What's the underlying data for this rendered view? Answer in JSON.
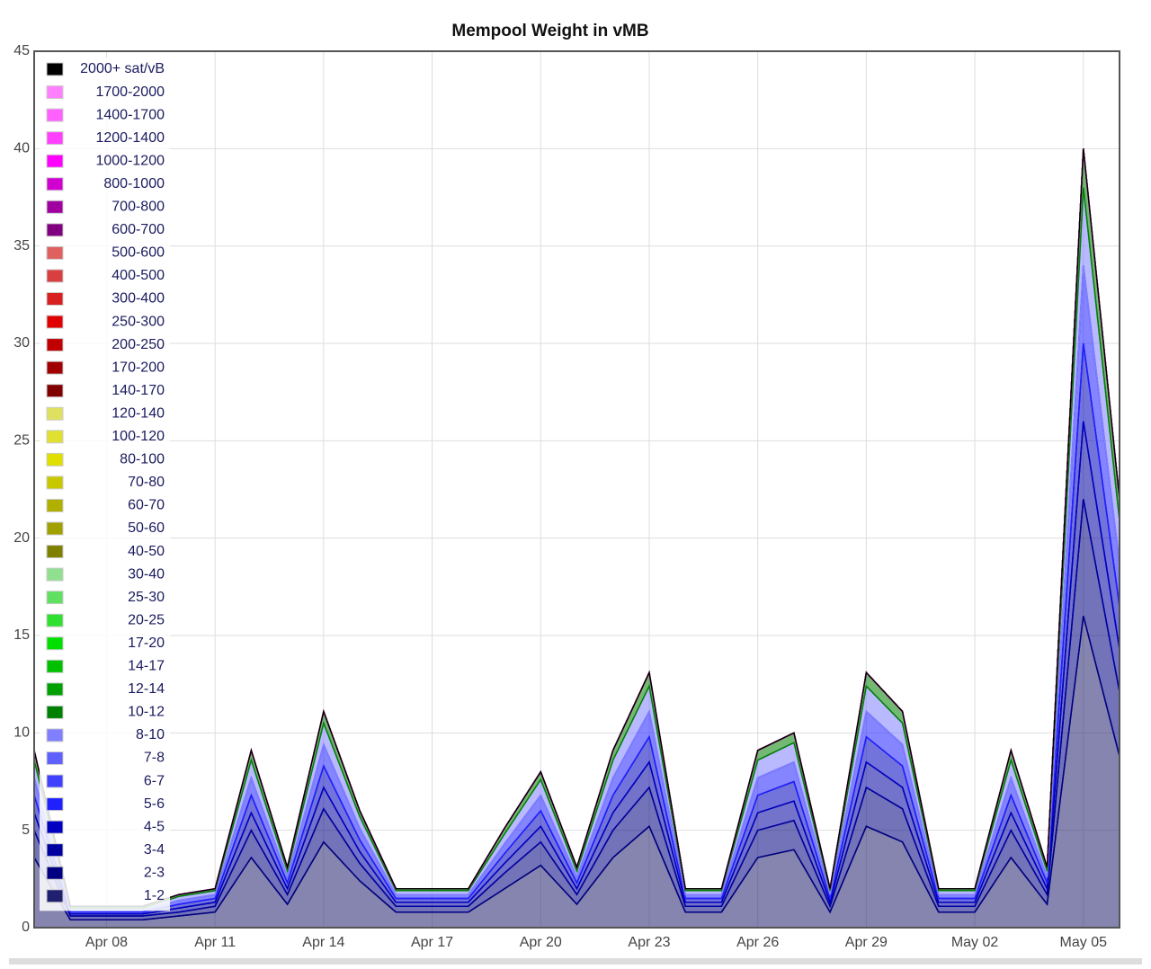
{
  "chart_data": {
    "type": "stacked-area",
    "title": "Mempool Weight in vMB",
    "x": [
      null,
      null,
      "Apr 08",
      null,
      null,
      "Apr 11",
      null,
      null,
      "Apr 14",
      null,
      null,
      "Apr 17",
      null,
      null,
      "Apr 20",
      null,
      null,
      "Apr 23",
      null,
      null,
      "Apr 26",
      null,
      null,
      "Apr 29",
      null,
      null,
      "May 02",
      null,
      null,
      "May 05",
      null
    ],
    "ylim": [
      0,
      45
    ],
    "yticks": [
      0,
      5,
      10,
      15,
      20,
      25,
      30,
      35,
      40,
      45
    ],
    "grid": true,
    "legend": "top-left",
    "series": [
      {
        "name": "2000+ sat/vB",
        "color": "#000000",
        "values": [
          0,
          0,
          0,
          0,
          0,
          0,
          0,
          0,
          0,
          0,
          0,
          0,
          0,
          0,
          0,
          0,
          0,
          0,
          0,
          0,
          0,
          0,
          0,
          0,
          0,
          0,
          0,
          0,
          0,
          0,
          0
        ]
      },
      {
        "name": "1700-2000",
        "color": "#ff80ff",
        "values": [
          0,
          0,
          0,
          0,
          0,
          0,
          0,
          0,
          0,
          0,
          0,
          0,
          0,
          0,
          0,
          0,
          0,
          0,
          0,
          0,
          0,
          0,
          0,
          0,
          0,
          0,
          0,
          0,
          0,
          0,
          0
        ]
      },
      {
        "name": "1400-1700",
        "color": "#ff60ff",
        "values": [
          0,
          0,
          0,
          0,
          0,
          0,
          0,
          0,
          0,
          0,
          0,
          0,
          0,
          0,
          0,
          0,
          0,
          0,
          0,
          0,
          0,
          0,
          0,
          0,
          0,
          0,
          0,
          0,
          0,
          0,
          0
        ]
      },
      {
        "name": "1200-1400",
        "color": "#ff40ff",
        "values": [
          0,
          0,
          0,
          0,
          0,
          0,
          0,
          0,
          0,
          0,
          0,
          0,
          0,
          0,
          0,
          0,
          0,
          0,
          0,
          0,
          0,
          0,
          0,
          0,
          0,
          0,
          0,
          0,
          0,
          0,
          0
        ]
      },
      {
        "name": "1000-1200",
        "color": "#ff00ff",
        "values": [
          0,
          0,
          0,
          0,
          0,
          0,
          0,
          0,
          0,
          0,
          0,
          0,
          0,
          0,
          0,
          0,
          0,
          0,
          0,
          0,
          0,
          0,
          0,
          0,
          0,
          0,
          0,
          0,
          0,
          0,
          0
        ]
      },
      {
        "name": "800-1000",
        "color": "#d000d0",
        "values": [
          0,
          0,
          0,
          0,
          0,
          0,
          0,
          0,
          0,
          0,
          0,
          0,
          0,
          0,
          0,
          0,
          0,
          0,
          0,
          0,
          0,
          0,
          0,
          0,
          0,
          0,
          0,
          0,
          0,
          0,
          0
        ]
      },
      {
        "name": "700-800",
        "color": "#a000a0",
        "values": [
          0,
          0,
          0,
          0,
          0,
          0,
          0,
          0,
          0,
          0,
          0,
          0,
          0,
          0,
          0,
          0,
          0,
          0,
          0,
          0,
          0,
          0,
          0,
          0,
          0,
          0,
          0,
          0,
          0,
          0,
          0
        ]
      },
      {
        "name": "600-700",
        "color": "#800080",
        "values": [
          0,
          0,
          0,
          0,
          0,
          0,
          0,
          0,
          0,
          0,
          0,
          0,
          0,
          0,
          0,
          0,
          0,
          0,
          0,
          0,
          0,
          0,
          0,
          0,
          0,
          0,
          0,
          0,
          0,
          0,
          0
        ]
      },
      {
        "name": "500-600",
        "color": "#e06060",
        "values": [
          0,
          0,
          0,
          0,
          0,
          0,
          0,
          0,
          0,
          0,
          0,
          0,
          0,
          0,
          0,
          0,
          0,
          0,
          0,
          0,
          0,
          0,
          0,
          0,
          0,
          0,
          0,
          0,
          0,
          0,
          0
        ]
      },
      {
        "name": "400-500",
        "color": "#d84040",
        "values": [
          0,
          0,
          0,
          0,
          0,
          0,
          0,
          0,
          0,
          0,
          0,
          0,
          0,
          0,
          0,
          0,
          0,
          0,
          0,
          0,
          0,
          0,
          0,
          0,
          0,
          0,
          0,
          0,
          0,
          0,
          0
        ]
      },
      {
        "name": "300-400",
        "color": "#d82020",
        "values": [
          0,
          0,
          0,
          0,
          0,
          0,
          0,
          0,
          0,
          0,
          0,
          0,
          0,
          0,
          0,
          0,
          0,
          0,
          0,
          0,
          0,
          0,
          0,
          0,
          0,
          0,
          0,
          0,
          0,
          0,
          0
        ]
      },
      {
        "name": "250-300",
        "color": "#e00000",
        "values": [
          0,
          0,
          0,
          0,
          0,
          0,
          0,
          0,
          0,
          0,
          0,
          0,
          0,
          0,
          0,
          0,
          0,
          0,
          0,
          0,
          0,
          0,
          0,
          0,
          0,
          0,
          0,
          0,
          0,
          0,
          0
        ]
      },
      {
        "name": "200-250",
        "color": "#c00000",
        "values": [
          0,
          0,
          0,
          0,
          0,
          0,
          0,
          0,
          0,
          0,
          0,
          0,
          0,
          0,
          0,
          0,
          0,
          0,
          0,
          0,
          0,
          0,
          0,
          0,
          0,
          0,
          0,
          0,
          0,
          0,
          0
        ]
      },
      {
        "name": "170-200",
        "color": "#a00000",
        "values": [
          0,
          0,
          0,
          0,
          0,
          0,
          0,
          0,
          0,
          0,
          0,
          0,
          0,
          0,
          0,
          0,
          0,
          0,
          0,
          0,
          0,
          0,
          0,
          0,
          0,
          0,
          0,
          0,
          0,
          0,
          0
        ]
      },
      {
        "name": "140-170",
        "color": "#800000",
        "values": [
          0,
          0,
          0,
          0,
          0,
          0,
          0,
          0,
          0,
          0,
          0,
          0,
          0,
          0,
          0,
          0,
          0,
          0,
          0,
          0,
          0,
          0,
          0,
          0,
          0,
          0,
          0,
          0,
          0,
          0,
          0
        ]
      },
      {
        "name": "120-140",
        "color": "#e0e060",
        "values": [
          0,
          0,
          0,
          0,
          0,
          0,
          0,
          0,
          0,
          0,
          0,
          0,
          0,
          0,
          0,
          0,
          0,
          0,
          0,
          0,
          0,
          0,
          0,
          0,
          0,
          0,
          0,
          0,
          0,
          0,
          0
        ]
      },
      {
        "name": "100-120",
        "color": "#e0e030",
        "values": [
          0,
          0,
          0,
          0,
          0,
          0,
          0,
          0,
          0,
          0,
          0,
          0,
          0,
          0,
          0,
          0,
          0,
          0,
          0,
          0,
          0,
          0,
          0,
          0,
          0,
          0,
          0,
          0,
          0,
          0,
          0
        ]
      },
      {
        "name": "80-100",
        "color": "#e0e000",
        "values": [
          0,
          0,
          0,
          0,
          0,
          0,
          0,
          0,
          0,
          0,
          0,
          0,
          0,
          0,
          0,
          0,
          0,
          0,
          0,
          0,
          0,
          0,
          0,
          0,
          0,
          0,
          0,
          0,
          0,
          0,
          0
        ]
      },
      {
        "name": "70-80",
        "color": "#c8c800",
        "values": [
          0,
          0,
          0,
          0,
          0,
          0,
          0,
          0,
          0,
          0,
          0,
          0,
          0,
          0,
          0,
          0,
          0,
          0,
          0,
          0,
          0,
          0,
          0,
          0,
          0,
          0,
          0,
          0,
          0,
          0,
          0
        ]
      },
      {
        "name": "60-70",
        "color": "#b0b000",
        "values": [
          0,
          0,
          0,
          0,
          0,
          0,
          0,
          0,
          0,
          0,
          0,
          0,
          0,
          0,
          0,
          0,
          0,
          0,
          0,
          0,
          0,
          0,
          0,
          0,
          0,
          0,
          0,
          0,
          0,
          0,
          0
        ]
      },
      {
        "name": "50-60",
        "color": "#a0a000",
        "values": [
          0,
          0,
          0,
          0,
          0,
          0,
          0,
          0,
          0,
          0,
          0,
          0,
          0,
          0,
          0,
          0,
          0,
          0,
          0,
          0,
          0,
          0,
          0,
          0,
          0,
          0,
          0,
          0,
          0,
          0,
          0
        ]
      },
      {
        "name": "40-50",
        "color": "#808000",
        "values": [
          0,
          0,
          0,
          0,
          0,
          0,
          0,
          0,
          0,
          0,
          0,
          0,
          0,
          0,
          0,
          0,
          0,
          0,
          0,
          0,
          0,
          0,
          0,
          0,
          0,
          0,
          0,
          0,
          0,
          0,
          0
        ]
      },
      {
        "name": "30-40",
        "color": "#90e090",
        "values": [
          0,
          0,
          0,
          0,
          0,
          0,
          0,
          0,
          0,
          0,
          0,
          0,
          0,
          0,
          0,
          0,
          0,
          0,
          0,
          0,
          0,
          0,
          0,
          0,
          0,
          0,
          0,
          0,
          0,
          0,
          0
        ]
      },
      {
        "name": "25-30",
        "color": "#60e060",
        "values": [
          0,
          0,
          0,
          0,
          0,
          0,
          0,
          0,
          0,
          0,
          0,
          0,
          0,
          0,
          0,
          0,
          0,
          0,
          0,
          0,
          0,
          0,
          0,
          0,
          0,
          0,
          0,
          0,
          0,
          0,
          0
        ]
      },
      {
        "name": "20-25",
        "color": "#30e030",
        "values": [
          0,
          0,
          0,
          0,
          0,
          0,
          0,
          0,
          0,
          0,
          0,
          0,
          0,
          0,
          0,
          0,
          0,
          0,
          0,
          0,
          0,
          0,
          0,
          0,
          0,
          0,
          0,
          0,
          0,
          0,
          0
        ]
      },
      {
        "name": "17-20",
        "color": "#00e000",
        "values": [
          0,
          0,
          0,
          0,
          0,
          0,
          0,
          0,
          0,
          0,
          0,
          0,
          0,
          0,
          0,
          0,
          0,
          0,
          0,
          0,
          0,
          0,
          0,
          0,
          0,
          0,
          0,
          0,
          0,
          0,
          0
        ]
      },
      {
        "name": "14-17",
        "color": "#00c000",
        "values": [
          0,
          0,
          0,
          0,
          0,
          0,
          0,
          0,
          0,
          0,
          0,
          0,
          0,
          0,
          0,
          0,
          0,
          0,
          0,
          0,
          0,
          0,
          0,
          0,
          0,
          0,
          0,
          0,
          0,
          0,
          0
        ]
      },
      {
        "name": "12-14",
        "color": "#00a000",
        "values": [
          0,
          0,
          0,
          0,
          0,
          0,
          0,
          0,
          0,
          0,
          0,
          0,
          0,
          0,
          0,
          0,
          0,
          0,
          0,
          0,
          0,
          0,
          0,
          0,
          0,
          0,
          0,
          0,
          0,
          0,
          0
        ]
      },
      {
        "name": "10-12",
        "color": "#008000",
        "values": [
          0.5,
          0.1,
          0.1,
          0.1,
          0.1,
          0.1,
          0.5,
          0.2,
          0.6,
          0.3,
          0.1,
          0.1,
          0.1,
          0.3,
          0.4,
          0.2,
          0.5,
          0.7,
          0.1,
          0.1,
          0.5,
          0.5,
          0.1,
          0.7,
          0.6,
          0.1,
          0.1,
          0.5,
          0.2,
          2,
          1.1
        ]
      },
      {
        "name": "8-10",
        "color": "#8080ff",
        "values": [
          0.9,
          0.1,
          0.1,
          0.1,
          0.2,
          0.2,
          0.9,
          0.3,
          1.1,
          0.6,
          0.2,
          0.2,
          0.2,
          0.5,
          0.8,
          0.3,
          0.9,
          1.3,
          0.2,
          0.2,
          0.9,
          1,
          0.2,
          1.3,
          1.1,
          0.2,
          0.2,
          0.9,
          0.3,
          4,
          2.2
        ]
      },
      {
        "name": "7-8",
        "color": "#6060ff",
        "values": [
          0,
          0,
          0,
          0,
          0,
          0,
          0,
          0,
          0,
          0,
          0,
          0,
          0,
          0,
          0,
          0,
          0,
          0,
          0,
          0,
          0,
          0,
          0,
          0,
          0,
          0,
          0,
          0,
          0,
          0,
          0
        ]
      },
      {
        "name": "6-7",
        "color": "#4040ff",
        "values": [
          0,
          0,
          0,
          0,
          0,
          0,
          0,
          0,
          0,
          0,
          0,
          0,
          0,
          0,
          0,
          0,
          0,
          0,
          0,
          0,
          0,
          0,
          0,
          0,
          0,
          0,
          0,
          0,
          0,
          0,
          0
        ]
      },
      {
        "name": "5-6",
        "color": "#2020ff",
        "values": [
          0.9,
          0.1,
          0.1,
          0.1,
          0.2,
          0.2,
          0.9,
          0.3,
          1.1,
          0.6,
          0.2,
          0.2,
          0.2,
          0.5,
          0.8,
          0.3,
          0.9,
          1.3,
          0.2,
          0.2,
          0.9,
          1,
          0.2,
          1.3,
          1.1,
          0.2,
          0.2,
          0.9,
          0.3,
          4,
          2.2
        ]
      },
      {
        "name": "4-5",
        "color": "#0000c0",
        "values": [
          0.9,
          0.1,
          0.1,
          0.1,
          0.2,
          0.2,
          0.9,
          0.3,
          1.1,
          0.6,
          0.2,
          0.2,
          0.2,
          0.5,
          0.8,
          0.3,
          0.9,
          1.3,
          0.2,
          0.2,
          0.9,
          1,
          0.2,
          1.3,
          1.1,
          0.2,
          0.2,
          0.9,
          0.3,
          4,
          2.2
        ]
      },
      {
        "name": "3-4",
        "color": "#0000a0",
        "values": [
          0.9,
          0.1,
          0.1,
          0.1,
          0.2,
          0.2,
          0.9,
          0.3,
          1.1,
          0.6,
          0.2,
          0.2,
          0.2,
          0.5,
          0.8,
          0.3,
          0.9,
          1.3,
          0.2,
          0.2,
          0.9,
          1,
          0.2,
          1.3,
          1.1,
          0.2,
          0.2,
          0.9,
          0.3,
          4,
          2.2
        ]
      },
      {
        "name": "2-3",
        "color": "#000080",
        "values": [
          1.4,
          0.2,
          0.2,
          0.2,
          0.2,
          0.3,
          1.4,
          0.5,
          1.7,
          0.9,
          0.3,
          0.3,
          0.3,
          0.8,
          1.2,
          0.5,
          1.4,
          2,
          0.3,
          0.3,
          1.4,
          1.5,
          0.3,
          2,
          1.7,
          0.3,
          0.3,
          1.4,
          0.5,
          6,
          3.3
        ]
      },
      {
        "name": "1-2",
        "color": "#202070",
        "values": [
          3.6,
          0.4,
          0.4,
          0.4,
          0.6,
          0.8,
          3.6,
          1.2,
          4.4,
          2.4,
          0.8,
          0.8,
          0.8,
          2,
          3.2,
          1.2,
          3.6,
          5.2,
          0.8,
          0.8,
          3.6,
          4,
          0.8,
          5.2,
          4.4,
          0.8,
          0.8,
          3.6,
          1.2,
          16,
          8.8
        ]
      }
    ]
  }
}
